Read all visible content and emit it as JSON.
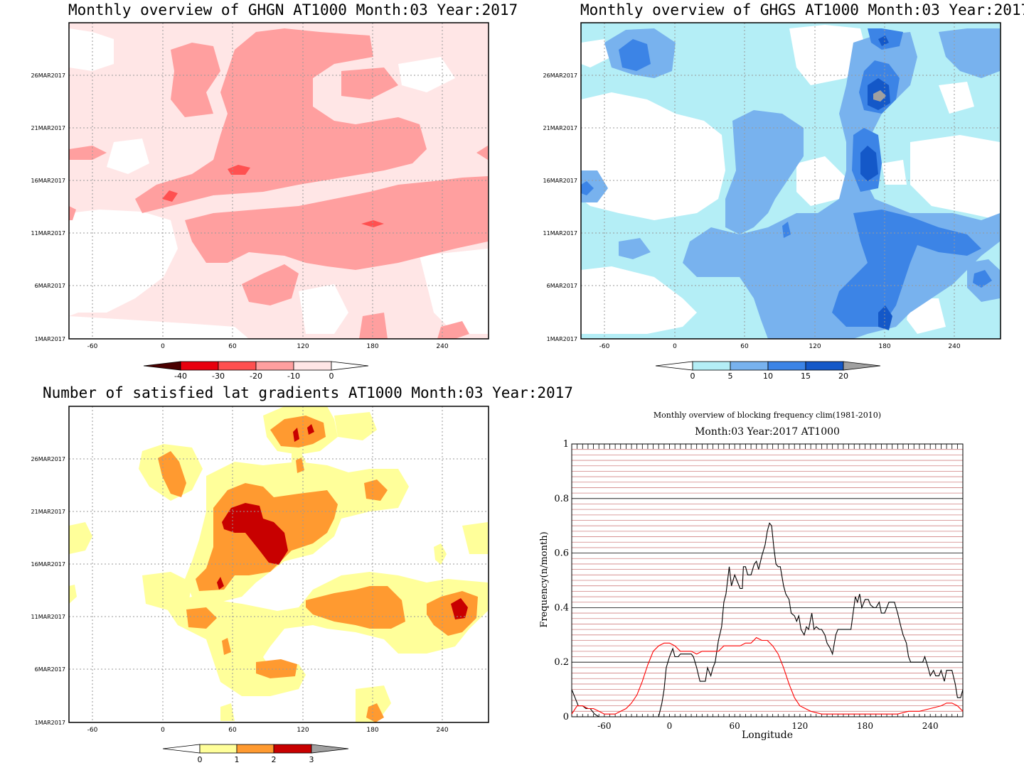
{
  "panels": {
    "ghgn": {
      "title": "Monthly overview of GHGN AT1000 Month:03 Year:2017",
      "y_ticks": [
        "26MAR2017",
        "21MAR2017",
        "16MAR2017",
        "11MAR2017",
        "6MAR2017",
        "1MAR2017"
      ],
      "x_ticks": [
        "-60",
        "0",
        "60",
        "120",
        "180",
        "240"
      ],
      "colorbar": {
        "labels": [
          "-40",
          "-30",
          "-20",
          "-10",
          "0"
        ],
        "colors": [
          "#7a0000",
          "#e8000e",
          "#ff5050",
          "#ff9f9f",
          "#ffe6e6"
        ]
      }
    },
    "ghgs": {
      "title": "Monthly overview of GHGS AT1000 Month:03 Year:2017",
      "y_ticks": [
        "26MAR2017",
        "21MAR2017",
        "16MAR2017",
        "11MAR2017",
        "6MAR2017",
        "1MAR2017"
      ],
      "x_ticks": [
        "-60",
        "0",
        "60",
        "120",
        "180",
        "240"
      ],
      "colorbar": {
        "labels": [
          "0",
          "5",
          "10",
          "15",
          "20"
        ],
        "colors": [
          "#b4eef6",
          "#78b2ee",
          "#3c84e6",
          "#1458c8",
          "#a0a0a0"
        ]
      }
    },
    "satisfied": {
      "title": "Number of satisfied lat gradients AT1000 Month:03 Year:2017",
      "y_ticks": [
        "26MAR2017",
        "21MAR2017",
        "16MAR2017",
        "11MAR2017",
        "6MAR2017",
        "1MAR2017"
      ],
      "x_ticks": [
        "-60",
        "0",
        "60",
        "120",
        "180",
        "240"
      ],
      "colorbar": {
        "labels": [
          "0",
          "1",
          "2",
          "3"
        ],
        "colors": [
          "#ffff9a",
          "#ff9a30",
          "#c80000",
          "#a0a0a0"
        ]
      }
    }
  },
  "colors": {
    "ghgn": {
      "l1": "#ffe6e6",
      "l2": "#ff9f9f",
      "l3": "#ff5050"
    },
    "ghgs": {
      "l1": "#b4eef6",
      "l2": "#78b2ee",
      "l3": "#3c84e6",
      "l4": "#1458c8",
      "l5": "#a0a0a0"
    },
    "sat": {
      "l1": "#ffff9a",
      "l2": "#ff9a30",
      "l3": "#c80000"
    }
  },
  "chart_data": {
    "type": "line",
    "title": "Monthly overview of blocking frequency clim(1981-2010)",
    "subtitle": "Month:03 Year:2017  AT1000",
    "xlabel": "Longitude",
    "ylabel": "Frequency(n/month)",
    "xlim": [
      -90,
      270
    ],
    "ylim": [
      0,
      1
    ],
    "x_ticks": [
      "-60",
      "0",
      "60",
      "120",
      "180",
      "240"
    ],
    "y_ticks": [
      "0",
      "0.2",
      "0.4",
      "0.6",
      "0.8",
      "1"
    ],
    "series": [
      {
        "color": "#000000",
        "x": [
          -90,
          -87,
          -84,
          -80,
          -77,
          -73,
          -69,
          -65,
          -60,
          -55,
          -50,
          -45,
          -40,
          -35,
          -30,
          -25,
          -20,
          -18,
          -15,
          -12,
          -10,
          -7,
          -5,
          -3,
          0,
          3,
          5,
          8,
          10,
          12,
          15,
          18,
          20,
          22,
          25,
          28,
          30,
          33,
          35,
          38,
          40,
          42,
          45,
          48,
          50,
          52,
          55,
          57,
          60,
          62,
          65,
          67,
          68,
          70,
          72,
          75,
          78,
          80,
          82,
          85,
          88,
          90,
          92,
          94,
          96,
          98,
          100,
          102,
          105,
          107,
          110,
          112,
          115,
          117,
          119,
          121,
          124,
          126,
          128,
          131,
          133,
          135,
          138,
          140,
          143,
          145,
          148,
          150,
          153,
          155,
          157,
          160,
          162,
          164,
          167,
          169,
          171,
          173,
          175,
          177,
          180,
          183,
          185,
          188,
          190,
          193,
          195,
          198,
          200,
          202,
          205,
          207,
          210,
          213,
          215,
          218,
          220,
          222,
          225,
          227,
          230,
          233,
          235,
          238,
          240,
          243,
          245,
          248,
          250,
          253,
          255,
          258,
          260,
          263,
          265,
          268,
          270
        ],
        "y": [
          0.1,
          0.07,
          0.04,
          0.04,
          0.03,
          0.03,
          0.01,
          0.0,
          0.0,
          0.0,
          0.0,
          0.0,
          0.0,
          0.0,
          0.0,
          0.0,
          0.0,
          0.0,
          0.0,
          0.0,
          0.0,
          0.05,
          0.1,
          0.18,
          0.22,
          0.25,
          0.22,
          0.22,
          0.23,
          0.23,
          0.23,
          0.23,
          0.23,
          0.22,
          0.18,
          0.13,
          0.13,
          0.13,
          0.18,
          0.15,
          0.18,
          0.2,
          0.28,
          0.33,
          0.42,
          0.45,
          0.55,
          0.48,
          0.52,
          0.5,
          0.47,
          0.47,
          0.55,
          0.55,
          0.52,
          0.52,
          0.56,
          0.57,
          0.54,
          0.59,
          0.63,
          0.68,
          0.71,
          0.7,
          0.62,
          0.56,
          0.55,
          0.55,
          0.48,
          0.45,
          0.43,
          0.38,
          0.37,
          0.35,
          0.37,
          0.32,
          0.3,
          0.33,
          0.32,
          0.38,
          0.32,
          0.33,
          0.32,
          0.32,
          0.3,
          0.27,
          0.25,
          0.23,
          0.3,
          0.32,
          0.32,
          0.32,
          0.32,
          0.32,
          0.32,
          0.38,
          0.44,
          0.42,
          0.45,
          0.4,
          0.43,
          0.43,
          0.41,
          0.4,
          0.4,
          0.42,
          0.38,
          0.38,
          0.4,
          0.42,
          0.42,
          0.42,
          0.38,
          0.33,
          0.3,
          0.27,
          0.22,
          0.2,
          0.2,
          0.2,
          0.2,
          0.2,
          0.22,
          0.18,
          0.15,
          0.17,
          0.15,
          0.15,
          0.17,
          0.13,
          0.17,
          0.17,
          0.17,
          0.12,
          0.07,
          0.07,
          0.1
        ]
      },
      {
        "color": "#ff0000",
        "x": [
          -90,
          -85,
          -80,
          -75,
          -70,
          -65,
          -60,
          -55,
          -50,
          -45,
          -40,
          -35,
          -30,
          -25,
          -20,
          -15,
          -10,
          -5,
          0,
          5,
          10,
          15,
          20,
          25,
          30,
          35,
          40,
          45,
          50,
          55,
          60,
          65,
          70,
          75,
          80,
          85,
          90,
          95,
          100,
          105,
          110,
          115,
          120,
          125,
          130,
          140,
          150,
          160,
          170,
          180,
          190,
          200,
          210,
          220,
          230,
          240,
          250,
          255,
          260,
          265,
          270
        ],
        "y": [
          0.01,
          0.04,
          0.04,
          0.03,
          0.03,
          0.02,
          0.01,
          0.01,
          0.01,
          0.02,
          0.03,
          0.05,
          0.08,
          0.13,
          0.19,
          0.24,
          0.26,
          0.27,
          0.27,
          0.26,
          0.24,
          0.24,
          0.24,
          0.23,
          0.24,
          0.24,
          0.24,
          0.24,
          0.26,
          0.26,
          0.26,
          0.26,
          0.27,
          0.27,
          0.29,
          0.28,
          0.28,
          0.26,
          0.23,
          0.18,
          0.12,
          0.07,
          0.04,
          0.03,
          0.02,
          0.01,
          0.01,
          0.01,
          0.01,
          0.01,
          0.01,
          0.01,
          0.01,
          0.02,
          0.02,
          0.03,
          0.04,
          0.05,
          0.05,
          0.04,
          0.02
        ]
      }
    ]
  }
}
